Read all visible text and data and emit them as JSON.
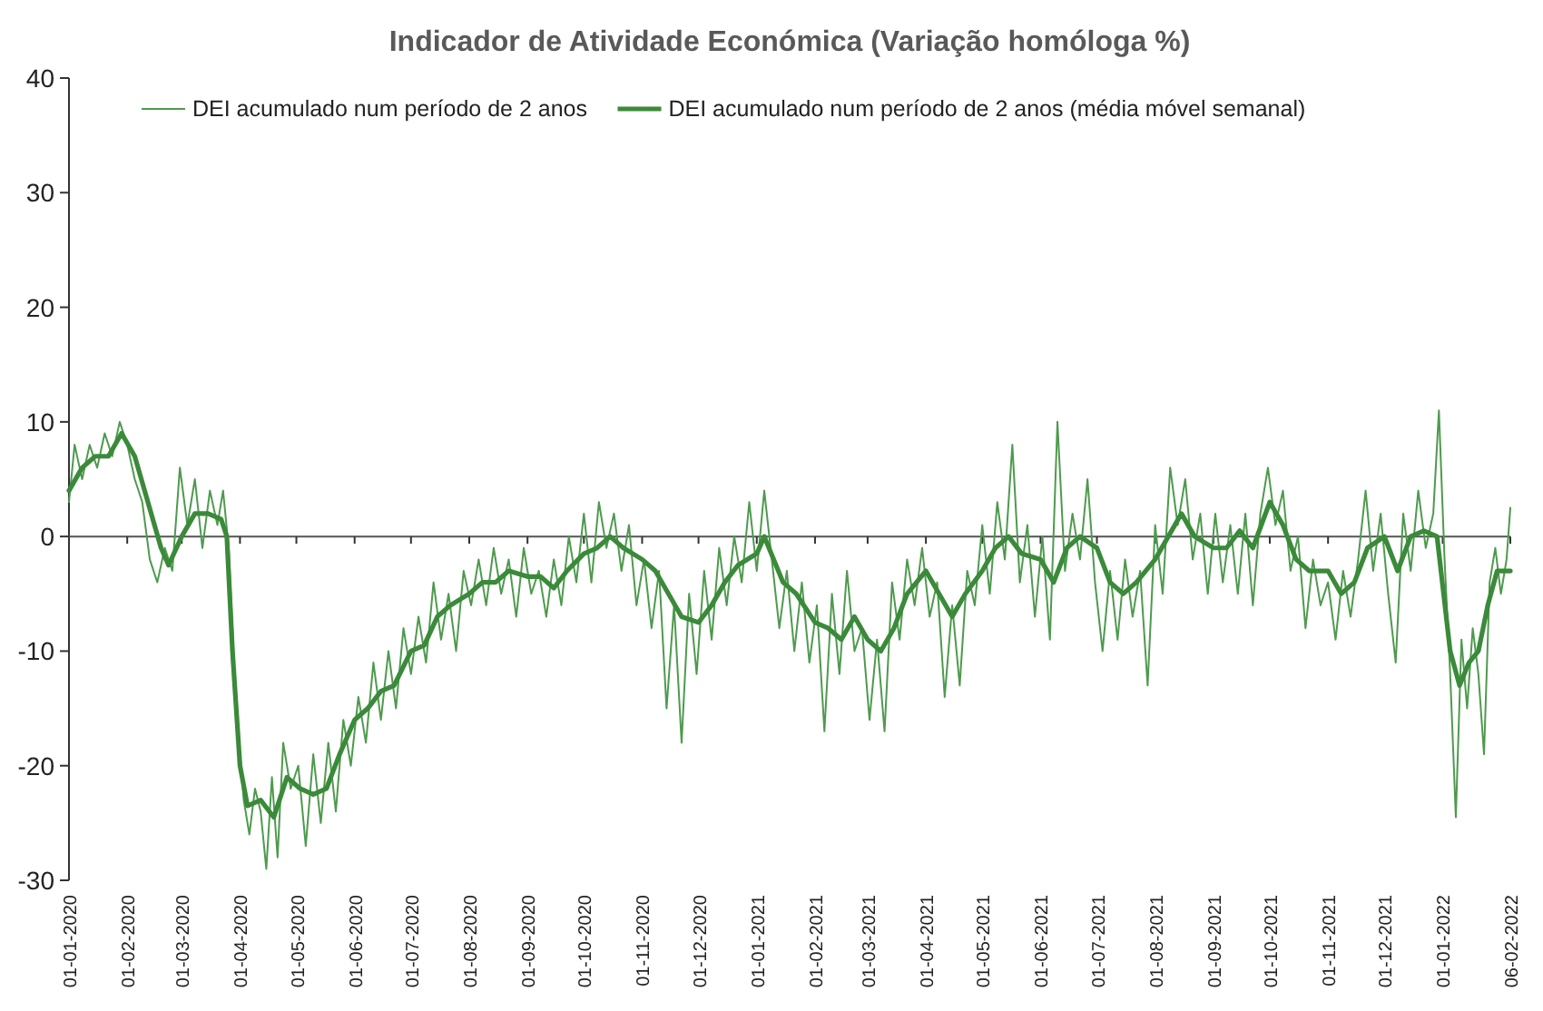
{
  "chart_data": {
    "type": "line",
    "title": "Indicador de Atividade Económica (Variação homóloga %)",
    "legend": "top",
    "xlim": [
      "2020-01-01",
      "2022-02-06"
    ],
    "ylim": [
      -30,
      40
    ],
    "yticks": [
      -30,
      -20,
      -10,
      0,
      10,
      20,
      30,
      40
    ],
    "xticks": [
      {
        "value": "2020-01-01",
        "label": "01-01-2020"
      },
      {
        "value": "2020-02-01",
        "label": "01-02-2020"
      },
      {
        "value": "2020-03-01",
        "label": "01-03-2020"
      },
      {
        "value": "2020-04-01",
        "label": "01-04-2020"
      },
      {
        "value": "2020-05-01",
        "label": "01-05-2020"
      },
      {
        "value": "2020-06-01",
        "label": "01-06-2020"
      },
      {
        "value": "2020-07-01",
        "label": "01-07-2020"
      },
      {
        "value": "2020-08-01",
        "label": "01-08-2020"
      },
      {
        "value": "2020-09-01",
        "label": "01-09-2020"
      },
      {
        "value": "2020-10-01",
        "label": "01-10-2020"
      },
      {
        "value": "2020-11-01",
        "label": "01-11-2020"
      },
      {
        "value": "2020-12-01",
        "label": "01-12-2020"
      },
      {
        "value": "2021-01-01",
        "label": "01-01-2021"
      },
      {
        "value": "2021-02-01",
        "label": "01-02-2021"
      },
      {
        "value": "2021-03-01",
        "label": "01-03-2021"
      },
      {
        "value": "2021-04-01",
        "label": "01-04-2021"
      },
      {
        "value": "2021-05-01",
        "label": "01-05-2021"
      },
      {
        "value": "2021-06-01",
        "label": "01-06-2021"
      },
      {
        "value": "2021-07-01",
        "label": "01-07-2021"
      },
      {
        "value": "2021-08-01",
        "label": "01-08-2021"
      },
      {
        "value": "2021-09-01",
        "label": "01-09-2021"
      },
      {
        "value": "2021-10-01",
        "label": "01-10-2021"
      },
      {
        "value": "2021-11-01",
        "label": "01-11-2021"
      },
      {
        "value": "2021-12-01",
        "label": "01-12-2021"
      },
      {
        "value": "2022-01-01",
        "label": "01-01-2022"
      },
      {
        "value": "2022-02-06",
        "label": "06-02-2022"
      }
    ],
    "series": [
      {
        "name": "DEI acumulado num período de 2 anos",
        "color": "#4e9a4e",
        "x": [
          "2020-01-01",
          "2020-01-04",
          "2020-01-08",
          "2020-01-12",
          "2020-01-16",
          "2020-01-20",
          "2020-01-24",
          "2020-01-28",
          "2020-02-01",
          "2020-02-05",
          "2020-02-09",
          "2020-02-13",
          "2020-02-17",
          "2020-02-21",
          "2020-02-25",
          "2020-02-29",
          "2020-03-04",
          "2020-03-08",
          "2020-03-12",
          "2020-03-16",
          "2020-03-20",
          "2020-03-23",
          "2020-03-26",
          "2020-03-30",
          "2020-04-03",
          "2020-04-06",
          "2020-04-09",
          "2020-04-12",
          "2020-04-15",
          "2020-04-18",
          "2020-04-21",
          "2020-04-24",
          "2020-04-28",
          "2020-05-02",
          "2020-05-06",
          "2020-05-10",
          "2020-05-14",
          "2020-05-18",
          "2020-05-22",
          "2020-05-26",
          "2020-05-30",
          "2020-06-03",
          "2020-06-07",
          "2020-06-11",
          "2020-06-15",
          "2020-06-19",
          "2020-06-23",
          "2020-06-27",
          "2020-07-01",
          "2020-07-05",
          "2020-07-09",
          "2020-07-13",
          "2020-07-17",
          "2020-07-21",
          "2020-07-25",
          "2020-07-29",
          "2020-08-02",
          "2020-08-06",
          "2020-08-10",
          "2020-08-14",
          "2020-08-18",
          "2020-08-22",
          "2020-08-26",
          "2020-08-30",
          "2020-09-03",
          "2020-09-07",
          "2020-09-11",
          "2020-09-15",
          "2020-09-19",
          "2020-09-23",
          "2020-09-27",
          "2020-10-01",
          "2020-10-05",
          "2020-10-09",
          "2020-10-13",
          "2020-10-17",
          "2020-10-21",
          "2020-10-25",
          "2020-10-29",
          "2020-11-02",
          "2020-11-06",
          "2020-11-10",
          "2020-11-14",
          "2020-11-18",
          "2020-11-22",
          "2020-11-26",
          "2020-11-30",
          "2020-12-04",
          "2020-12-08",
          "2020-12-12",
          "2020-12-16",
          "2020-12-20",
          "2020-12-24",
          "2020-12-28",
          "2021-01-01",
          "2021-01-05",
          "2021-01-09",
          "2021-01-13",
          "2021-01-17",
          "2021-01-21",
          "2021-01-25",
          "2021-01-29",
          "2021-02-02",
          "2021-02-06",
          "2021-02-10",
          "2021-02-14",
          "2021-02-18",
          "2021-02-22",
          "2021-02-26",
          "2021-03-02",
          "2021-03-06",
          "2021-03-10",
          "2021-03-14",
          "2021-03-18",
          "2021-03-22",
          "2021-03-26",
          "2021-03-30",
          "2021-04-03",
          "2021-04-07",
          "2021-04-11",
          "2021-04-15",
          "2021-04-19",
          "2021-04-23",
          "2021-04-27",
          "2021-05-01",
          "2021-05-05",
          "2021-05-09",
          "2021-05-13",
          "2021-05-17",
          "2021-05-21",
          "2021-05-25",
          "2021-05-29",
          "2021-06-02",
          "2021-06-06",
          "2021-06-10",
          "2021-06-14",
          "2021-06-18",
          "2021-06-22",
          "2021-06-26",
          "2021-06-30",
          "2021-07-04",
          "2021-07-08",
          "2021-07-12",
          "2021-07-16",
          "2021-07-20",
          "2021-07-24",
          "2021-07-28",
          "2021-08-01",
          "2021-08-05",
          "2021-08-09",
          "2021-08-13",
          "2021-08-17",
          "2021-08-21",
          "2021-08-25",
          "2021-08-29",
          "2021-09-02",
          "2021-09-06",
          "2021-09-10",
          "2021-09-14",
          "2021-09-18",
          "2021-09-22",
          "2021-09-26",
          "2021-09-30",
          "2021-10-04",
          "2021-10-08",
          "2021-10-12",
          "2021-10-16",
          "2021-10-20",
          "2021-10-24",
          "2021-10-28",
          "2021-11-01",
          "2021-11-05",
          "2021-11-09",
          "2021-11-13",
          "2021-11-17",
          "2021-11-21",
          "2021-11-25",
          "2021-11-29",
          "2021-12-03",
          "2021-12-07",
          "2021-12-11",
          "2021-12-15",
          "2021-12-19",
          "2021-12-23",
          "2021-12-27",
          "2021-12-30",
          "2022-01-02",
          "2022-01-05",
          "2022-01-08",
          "2022-01-11",
          "2022-01-14",
          "2022-01-17",
          "2022-01-20",
          "2022-01-23",
          "2022-01-26",
          "2022-01-29",
          "2022-02-01",
          "2022-02-04",
          "2022-02-06"
        ],
        "values": [
          3,
          8,
          5,
          8,
          6,
          9,
          7,
          10,
          8,
          5,
          3,
          -2,
          -4,
          -1,
          -3,
          6,
          1,
          5,
          -1,
          4,
          1,
          4,
          -1,
          -15,
          -23,
          -26,
          -22,
          -24,
          -29,
          -21,
          -28,
          -18,
          -22,
          -20,
          -27,
          -19,
          -25,
          -18,
          -24,
          -16,
          -20,
          -14,
          -18,
          -11,
          -16,
          -10,
          -15,
          -8,
          -12,
          -7,
          -11,
          -4,
          -9,
          -5,
          -10,
          -3,
          -6,
          -2,
          -6,
          -1,
          -5,
          -2,
          -7,
          -1,
          -5,
          -3,
          -7,
          -2,
          -6,
          0,
          -4,
          2,
          -4,
          3,
          -1,
          2,
          -3,
          1,
          -6,
          -2,
          -8,
          -3,
          -15,
          -6,
          -18,
          -5,
          -12,
          -3,
          -9,
          -1,
          -6,
          0,
          -4,
          3,
          -3,
          4,
          -2,
          -8,
          -3,
          -10,
          -4,
          -11,
          -6,
          -17,
          -5,
          -12,
          -3,
          -10,
          -8,
          -16,
          -9,
          -17,
          -4,
          -9,
          -2,
          -6,
          -1,
          -7,
          -4,
          -14,
          -6,
          -13,
          -3,
          -6,
          1,
          -5,
          3,
          -2,
          8,
          -4,
          1,
          -7,
          0,
          -9,
          10,
          -3,
          2,
          -2,
          5,
          -4,
          -10,
          -3,
          -9,
          -2,
          -7,
          -3,
          -13,
          1,
          -5,
          6,
          1,
          5,
          -2,
          2,
          -5,
          2,
          -4,
          1,
          -5,
          2,
          -6,
          2,
          6,
          1,
          4,
          -3,
          0,
          -8,
          -2,
          -6,
          -4,
          -9,
          -3,
          -7,
          -2,
          4,
          -3,
          2,
          -5,
          -11,
          2,
          -3,
          4,
          -1,
          2,
          11,
          -2,
          -12,
          -24.5,
          -9,
          -15,
          -8,
          -12,
          -19,
          -4,
          -1,
          -5,
          -2,
          2.5
        ]
      },
      {
        "name": "DEI acumulado num período de 2 anos (média móvel semanal)",
        "color": "#3a8a3a",
        "x": [
          "2020-01-01",
          "2020-01-08",
          "2020-01-15",
          "2020-01-22",
          "2020-01-29",
          "2020-02-05",
          "2020-02-12",
          "2020-02-19",
          "2020-02-23",
          "2020-03-01",
          "2020-03-08",
          "2020-03-15",
          "2020-03-22",
          "2020-03-25",
          "2020-03-28",
          "2020-04-01",
          "2020-04-05",
          "2020-04-12",
          "2020-04-19",
          "2020-04-26",
          "2020-05-03",
          "2020-05-10",
          "2020-05-17",
          "2020-05-24",
          "2020-06-01",
          "2020-06-08",
          "2020-06-15",
          "2020-06-22",
          "2020-07-01",
          "2020-07-08",
          "2020-07-15",
          "2020-07-22",
          "2020-08-01",
          "2020-08-08",
          "2020-08-15",
          "2020-08-22",
          "2020-09-01",
          "2020-09-08",
          "2020-09-15",
          "2020-09-22",
          "2020-10-01",
          "2020-10-08",
          "2020-10-15",
          "2020-10-22",
          "2020-11-01",
          "2020-11-08",
          "2020-11-15",
          "2020-11-22",
          "2020-12-01",
          "2020-12-08",
          "2020-12-15",
          "2020-12-22",
          "2021-01-01",
          "2021-01-05",
          "2021-01-15",
          "2021-01-22",
          "2021-02-01",
          "2021-02-08",
          "2021-02-15",
          "2021-02-22",
          "2021-03-01",
          "2021-03-08",
          "2021-03-15",
          "2021-03-22",
          "2021-04-01",
          "2021-04-08",
          "2021-04-15",
          "2021-04-22",
          "2021-05-01",
          "2021-05-08",
          "2021-05-15",
          "2021-05-22",
          "2021-06-01",
          "2021-06-08",
          "2021-06-15",
          "2021-06-22",
          "2021-07-01",
          "2021-07-08",
          "2021-07-15",
          "2021-07-22",
          "2021-08-01",
          "2021-08-08",
          "2021-08-15",
          "2021-08-22",
          "2021-09-01",
          "2021-09-08",
          "2021-09-15",
          "2021-09-22",
          "2021-10-01",
          "2021-10-08",
          "2021-10-15",
          "2021-10-22",
          "2021-11-01",
          "2021-11-08",
          "2021-11-15",
          "2021-11-22",
          "2021-12-01",
          "2021-12-08",
          "2021-12-15",
          "2021-12-22",
          "2021-12-29",
          "2022-01-05",
          "2022-01-10",
          "2022-01-15",
          "2022-01-20",
          "2022-01-25",
          "2022-01-30",
          "2022-02-06"
        ],
        "values": [
          4,
          6,
          7,
          7,
          9,
          7,
          3,
          -1,
          -2.5,
          0,
          2,
          2,
          1.5,
          0,
          -10,
          -20,
          -23.5,
          -23,
          -24.5,
          -21,
          -22,
          -22.5,
          -22,
          -19,
          -16,
          -15,
          -13.5,
          -13,
          -10,
          -9.5,
          -7,
          -6,
          -5,
          -4,
          -4,
          -3,
          -3.5,
          -3.5,
          -4.5,
          -3,
          -1.5,
          -1,
          0,
          -1,
          -2,
          -3,
          -5,
          -7,
          -7.5,
          -6,
          -4,
          -2.5,
          -1.5,
          0,
          -4,
          -5,
          -7.5,
          -8,
          -9,
          -7,
          -9,
          -10,
          -8,
          -5,
          -3,
          -5,
          -7,
          -5,
          -3,
          -1,
          0,
          -1.5,
          -2,
          -4,
          -1,
          0,
          -1,
          -4,
          -5,
          -4,
          -2,
          0,
          2,
          0,
          -1,
          -1,
          0.5,
          -1,
          3,
          1,
          -2,
          -3,
          -3,
          -5,
          -4,
          -1,
          0,
          -3,
          0,
          0.5,
          0,
          -10,
          -13,
          -11,
          -10,
          -6,
          -3,
          -3
        ]
      }
    ]
  }
}
